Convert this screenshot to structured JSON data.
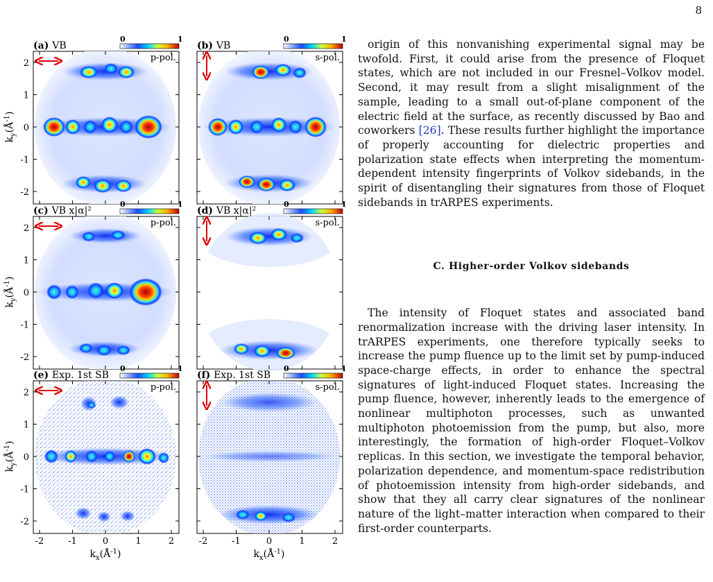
{
  "page_number": "8",
  "figure": {
    "colorbar": {
      "min_label": "0",
      "max_label": "1"
    },
    "y_ticks": [
      "2",
      "1",
      "0",
      "-1",
      "-2"
    ],
    "x_ticks": [
      "-2",
      "-1",
      "0",
      "1",
      "2"
    ],
    "y_axis_label": "k_y(Å^-1)",
    "x_axis_label": "k_x(Å^-1)",
    "panels": [
      {
        "letter": "(a)",
        "title": "VB",
        "pol": "p-pol.",
        "arrow": "horizontal"
      },
      {
        "letter": "(b)",
        "title": "VB",
        "pol": "s-pol.",
        "arrow": "vertical"
      },
      {
        "letter": "(c)",
        "title": "VB x|α|²",
        "pol": "p-pol.",
        "arrow": "horizontal"
      },
      {
        "letter": "(d)",
        "title": "VB x|α|²",
        "pol": "s-pol.",
        "arrow": "vertical"
      },
      {
        "letter": "(e)",
        "title": "Exp. 1st SB",
        "pol": "p-pol.",
        "arrow": "horizontal"
      },
      {
        "letter": "(f)",
        "title": "Exp. 1st SB",
        "pol": "s-pol.",
        "arrow": "vertical"
      }
    ]
  },
  "text": {
    "paragraph_1": {
      "before_ref": "origin of this nonvanishing experimental signal may be twofold. First, it could arise from the presence of Floquet states, which are not included in our Fresnel–Volkov model. Second, it may result from a slight misalignment of the sample, leading to a small out-of-plane component of the electric field at the surface, as recently discussed by Bao and coworkers ",
      "ref": "[26]",
      "after_ref": ". These results further highlight the importance of properly accounting for dielectric properties and polarization state effects when interpreting the momentum-dependent intensity fingerprints of Volkov sidebands, in the spirit of disentangling their signatures from those of Floquet sidebands in trARPES experiments."
    },
    "section_heading": "C.   Higher-order Volkov sidebands",
    "paragraph_2": "The intensity of Floquet states and associated band renormalization increase with the driving laser intensity. In trARPES experiments, one therefore typically seeks to increase the pump fluence up to the limit set by pump-induced space-charge effects, in order to enhance the spectral signatures of light-induced Floquet states. Increasing the pump fluence, however, inherently leads to the emergence of nonlinear multiphoton processes, such as unwanted multiphoton photoemission from the pump, but also, more interestingly, the formation of high-order Floquet–Volkov replicas. In this section, we investigate the temporal behavior, polarization dependence, and momentum-space redistribution of photoemission intensity from high-order sidebands, and show that they all carry clear signatures of the nonlinear nature of the light–matter interaction when compared to their first-order counterparts."
  }
}
